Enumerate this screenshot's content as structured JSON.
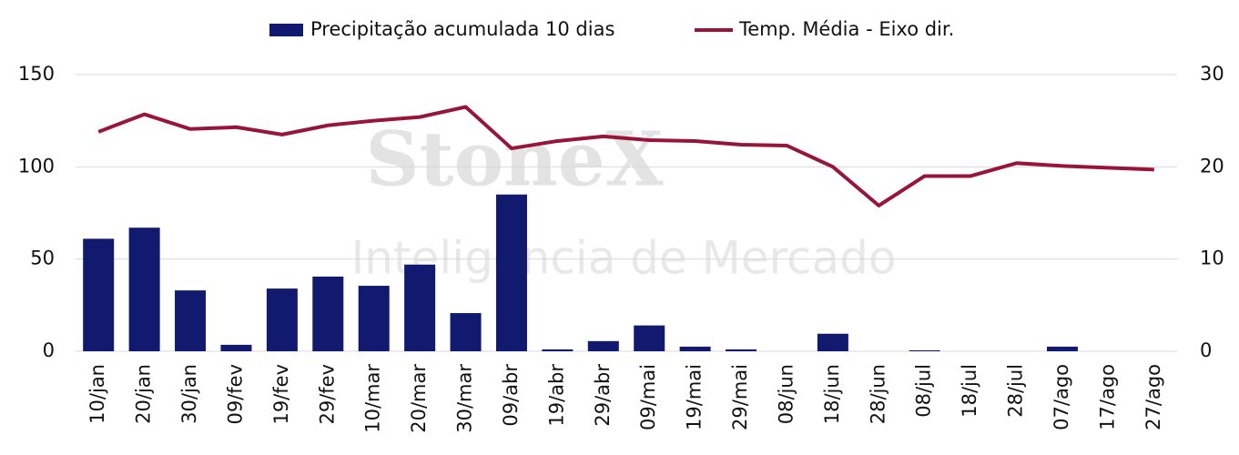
{
  "chart_data": {
    "type": "bar_line",
    "watermark": {
      "title": "StoneX",
      "subtitle": "Inteligência de Mercado"
    },
    "categories": [
      "10/jan",
      "20/jan",
      "30/jan",
      "09/fev",
      "19/fev",
      "29/fev",
      "10/mar",
      "20/mar",
      "30/mar",
      "09/abr",
      "19/abr",
      "29/abr",
      "09/mai",
      "19/mai",
      "29/mai",
      "08/jun",
      "18/jun",
      "28/jun",
      "08/jul",
      "18/jul",
      "28/jul",
      "07/ago",
      "17/ago",
      "27/ago"
    ],
    "series": [
      {
        "name": "Precipitação acumulada 10 dias",
        "type": "bar",
        "color": "#111a6e",
        "values": [
          61,
          67,
          33,
          3.5,
          34,
          40.5,
          35.5,
          47,
          20.7,
          85,
          1,
          5.5,
          14,
          2.5,
          1,
          0,
          9.5,
          0,
          0.5,
          0,
          0,
          2.5,
          0,
          0
        ]
      },
      {
        "name": "Temp. Média - Eixo dir.",
        "type": "line",
        "axis": "y2",
        "color": "#98153a",
        "values": [
          23.8,
          25.7,
          24.1,
          24.3,
          23.5,
          24.5,
          25,
          25.4,
          26.5,
          22,
          22.8,
          23.3,
          22.9,
          22.8,
          22.4,
          22.3,
          20,
          15.8,
          19,
          19,
          20.4,
          20.1,
          19.9,
          19.7
        ]
      }
    ],
    "ylim": [
      0,
      150
    ],
    "yticks": [
      0,
      50,
      100,
      150
    ],
    "y2lim": [
      0,
      30
    ],
    "y2ticks": [
      0,
      10,
      20,
      30
    ],
    "grid": true,
    "legend": "top"
  }
}
